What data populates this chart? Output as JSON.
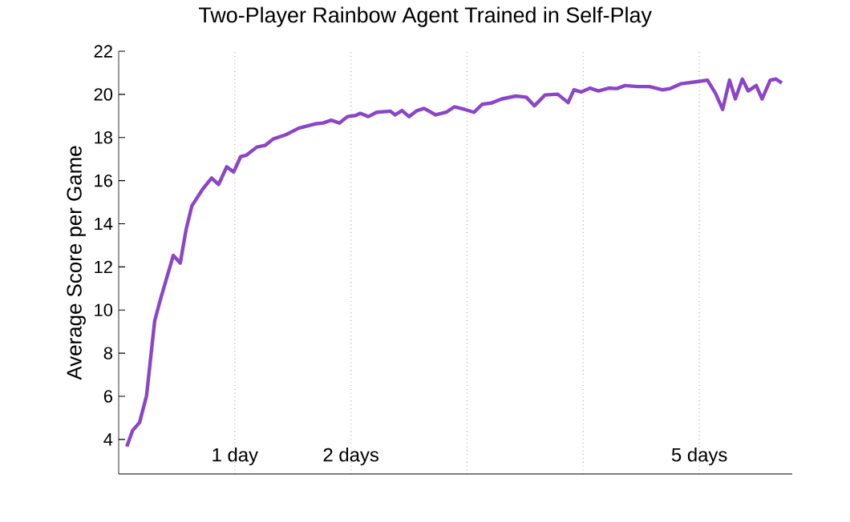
{
  "chart_data": {
    "type": "line",
    "title": "Two-Player Rainbow Agent Trained in Self-Play",
    "ylabel": "Average Score per Game",
    "xlim": [
      0,
      5.8
    ],
    "ylim": [
      2.4,
      22
    ],
    "yticks": [
      4,
      6,
      8,
      10,
      12,
      14,
      16,
      18,
      20,
      22
    ],
    "xticks": [
      {
        "value": 1,
        "label": "1 day"
      },
      {
        "value": 2,
        "label": "2 days"
      },
      {
        "value": 3,
        "label": null
      },
      {
        "value": 4,
        "label": null
      },
      {
        "value": 5,
        "label": "5 days"
      }
    ],
    "grid": "x",
    "series": [
      {
        "color": "#8b45c9",
        "line_style": "solid",
        "marker": "none",
        "x": [
          0.07,
          0.12,
          0.18,
          0.24,
          0.31,
          0.36,
          0.4,
          0.47,
          0.53,
          0.58,
          0.63,
          0.72,
          0.8,
          0.86,
          0.93,
          0.99,
          1.05,
          1.1,
          1.19,
          1.26,
          1.33,
          1.44,
          1.55,
          1.69,
          1.76,
          1.83,
          1.9,
          1.97,
          2.04,
          2.08,
          2.15,
          2.22,
          2.34,
          2.38,
          2.44,
          2.5,
          2.57,
          2.63,
          2.73,
          2.82,
          2.89,
          2.98,
          3.06,
          3.13,
          3.21,
          3.3,
          3.42,
          3.51,
          3.58,
          3.67,
          3.78,
          3.87,
          3.92,
          3.98,
          4.06,
          4.13,
          4.22,
          4.29,
          4.36,
          4.47,
          4.57,
          4.68,
          4.75,
          4.84,
          4.98,
          5.07,
          5.14,
          5.2,
          5.26,
          5.31,
          5.37,
          5.42,
          5.49,
          5.54,
          5.61,
          5.66,
          5.71
        ],
        "values": [
          3.67,
          4.42,
          4.79,
          6.03,
          9.5,
          10.5,
          11.24,
          12.53,
          12.18,
          13.72,
          14.83,
          15.58,
          16.12,
          15.82,
          16.64,
          16.4,
          17.11,
          17.18,
          17.56,
          17.63,
          17.93,
          18.13,
          18.43,
          18.63,
          18.67,
          18.8,
          18.67,
          18.97,
          19.02,
          19.12,
          18.97,
          19.17,
          19.22,
          19.05,
          19.25,
          18.97,
          19.25,
          19.35,
          19.05,
          19.17,
          19.42,
          19.3,
          19.17,
          19.54,
          19.6,
          19.79,
          19.92,
          19.87,
          19.47,
          19.97,
          20.01,
          19.62,
          20.21,
          20.11,
          20.29,
          20.16,
          20.29,
          20.27,
          20.41,
          20.36,
          20.36,
          20.21,
          20.27,
          20.49,
          20.59,
          20.66,
          20.04,
          19.3,
          20.66,
          19.79,
          20.71,
          20.16,
          20.41,
          19.79,
          20.66,
          20.71,
          20.53
        ]
      }
    ]
  }
}
